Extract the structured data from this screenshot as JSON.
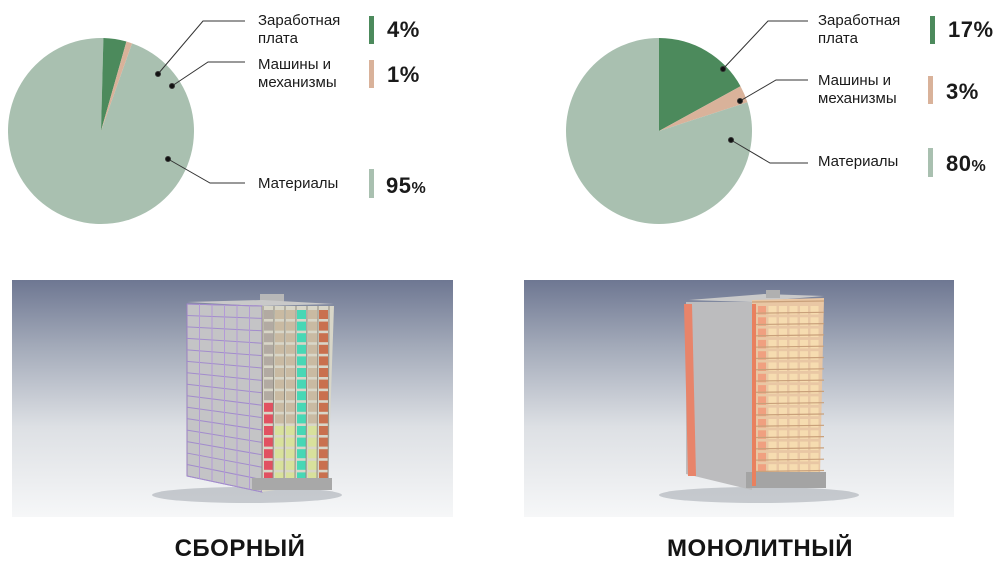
{
  "legend_left": {
    "salary": {
      "label_line1": "Заработная",
      "label_line2": "плата",
      "value": "4%"
    },
    "machines": {
      "label_line1": "Машины и",
      "label_line2": "механизмы",
      "value": "1%"
    },
    "materials": {
      "label": "Материалы",
      "value_num": "95",
      "value_pct": "%"
    }
  },
  "legend_right": {
    "salary": {
      "label_line1": "Заработная",
      "label_line2": "плата",
      "value": "17%"
    },
    "machines": {
      "label_line1": "Машины и",
      "label_line2": "механизмы",
      "value": "3%"
    },
    "materials": {
      "label": "Материалы",
      "value_num": "80",
      "value_pct": "%"
    }
  },
  "captions": {
    "left": "СБОРНЫЙ",
    "right": "МОНОЛИТНЫЙ"
  },
  "colors": {
    "salary": "#4c8a5c",
    "machines": "#d9b29a",
    "materials": "#a9c0b0"
  },
  "chart_data": [
    {
      "type": "pie",
      "categories": [
        "Заработная плата",
        "Машины и механизмы",
        "Материалы"
      ],
      "values": [
        4,
        1,
        95
      ]
    },
    {
      "type": "pie",
      "categories": [
        "Заработная плата",
        "Машины и механизмы",
        "Материалы"
      ],
      "values": [
        17,
        3,
        80
      ]
    }
  ]
}
